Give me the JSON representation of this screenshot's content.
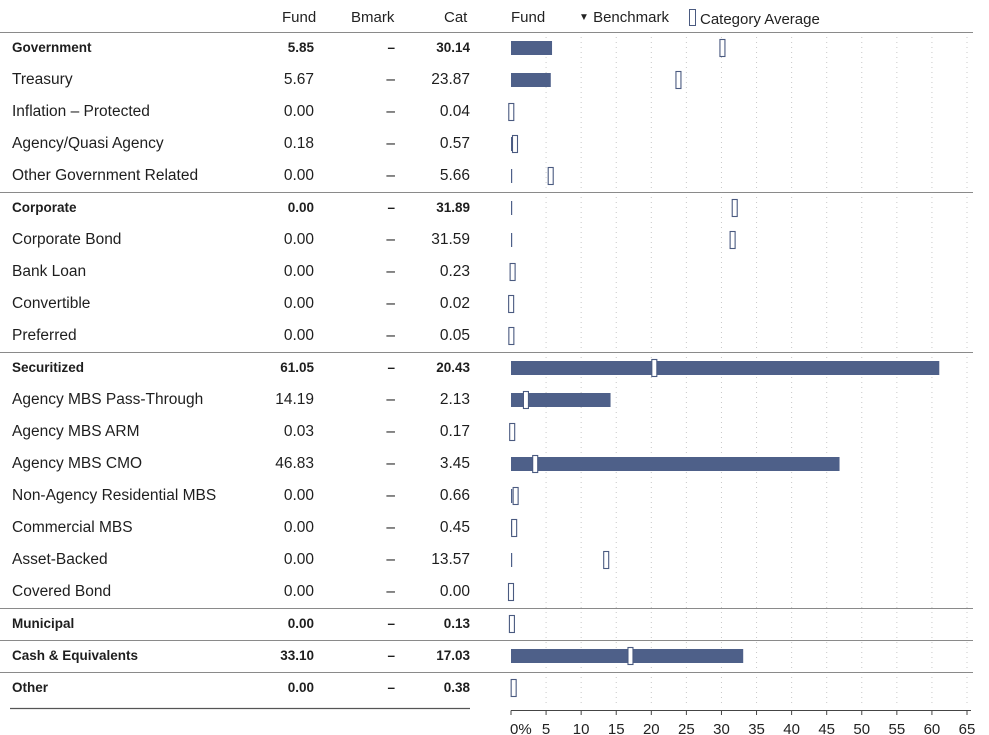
{
  "header": {
    "fund": "Fund",
    "bmark": "Bmark",
    "cat": "Cat",
    "legend_fund": "Fund",
    "legend_benchmark": "Benchmark",
    "legend_category": "Category Average"
  },
  "colors": {
    "fund_bar": "#4e6089",
    "cat_marker_stroke": "#4a5a80",
    "major_line": "#8a8a8a",
    "grid_dots": "#c8c8c8"
  },
  "chart_data": {
    "type": "bar",
    "orientation": "horizontal",
    "xlim": [
      0,
      65
    ],
    "x_ticks": [
      "0%",
      "5",
      "10",
      "15",
      "20",
      "25",
      "30",
      "35",
      "40",
      "45",
      "50",
      "55",
      "60",
      "65"
    ],
    "rows": [
      {
        "name": "Government",
        "major": true,
        "fund": 5.85,
        "bmark": "–",
        "cat": 30.14,
        "fund_label": "5.85",
        "cat_label": "30.14"
      },
      {
        "name": "Treasury",
        "major": false,
        "fund": 5.67,
        "bmark": "–",
        "cat": 23.87,
        "fund_label": "5.67",
        "cat_label": "23.87"
      },
      {
        "name": "Inflation – Protected",
        "major": false,
        "fund": 0.0,
        "bmark": "–",
        "cat": 0.04,
        "fund_label": "0.00",
        "cat_label": "0.04"
      },
      {
        "name": "Agency/Quasi Agency",
        "major": false,
        "fund": 0.18,
        "bmark": "–",
        "cat": 0.57,
        "fund_label": "0.18",
        "cat_label": "0.57"
      },
      {
        "name": "Other Government Related",
        "major": false,
        "fund": 0.0,
        "bmark": "–",
        "cat": 5.66,
        "fund_label": "0.00",
        "cat_label": "5.66"
      },
      {
        "name": "Corporate",
        "major": true,
        "fund": 0.0,
        "bmark": "–",
        "cat": 31.89,
        "fund_label": "0.00",
        "cat_label": "31.89"
      },
      {
        "name": "Corporate Bond",
        "major": false,
        "fund": 0.0,
        "bmark": "–",
        "cat": 31.59,
        "fund_label": "0.00",
        "cat_label": "31.59"
      },
      {
        "name": "Bank Loan",
        "major": false,
        "fund": 0.0,
        "bmark": "–",
        "cat": 0.23,
        "fund_label": "0.00",
        "cat_label": "0.23"
      },
      {
        "name": "Convertible",
        "major": false,
        "fund": 0.0,
        "bmark": "–",
        "cat": 0.02,
        "fund_label": "0.00",
        "cat_label": "0.02"
      },
      {
        "name": "Preferred",
        "major": false,
        "fund": 0.0,
        "bmark": "–",
        "cat": 0.05,
        "fund_label": "0.00",
        "cat_label": "0.05"
      },
      {
        "name": "Securitized",
        "major": true,
        "fund": 61.05,
        "bmark": "–",
        "cat": 20.43,
        "fund_label": "61.05",
        "cat_label": "20.43"
      },
      {
        "name": "Agency MBS Pass-Through",
        "major": false,
        "fund": 14.19,
        "bmark": "–",
        "cat": 2.13,
        "fund_label": "14.19",
        "cat_label": "2.13"
      },
      {
        "name": "Agency MBS ARM",
        "major": false,
        "fund": 0.03,
        "bmark": "–",
        "cat": 0.17,
        "fund_label": "0.03",
        "cat_label": "0.17"
      },
      {
        "name": "Agency MBS CMO",
        "major": false,
        "fund": 46.83,
        "bmark": "–",
        "cat": 3.45,
        "fund_label": "46.83",
        "cat_label": "3.45"
      },
      {
        "name": "Non-Agency Residential MBS",
        "major": false,
        "fund": 0.0,
        "bmark": "–",
        "cat": 0.66,
        "fund_label": "0.00",
        "cat_label": "0.66"
      },
      {
        "name": "Commercial MBS",
        "major": false,
        "fund": 0.0,
        "bmark": "–",
        "cat": 0.45,
        "fund_label": "0.00",
        "cat_label": "0.45"
      },
      {
        "name": "Asset-Backed",
        "major": false,
        "fund": 0.0,
        "bmark": "–",
        "cat": 13.57,
        "fund_label": "0.00",
        "cat_label": "13.57"
      },
      {
        "name": "Covered Bond",
        "major": false,
        "fund": 0.0,
        "bmark": "–",
        "cat": 0.0,
        "fund_label": "0.00",
        "cat_label": "0.00"
      },
      {
        "name": "Municipal",
        "major": true,
        "fund": 0.0,
        "bmark": "–",
        "cat": 0.13,
        "fund_label": "0.00",
        "cat_label": "0.13"
      },
      {
        "name": "Cash & Equivalents",
        "major": true,
        "fund": 33.1,
        "bmark": "–",
        "cat": 17.03,
        "fund_label": "33.10",
        "cat_label": "17.03"
      },
      {
        "name": "Other",
        "major": true,
        "fund": 0.0,
        "bmark": "–",
        "cat": 0.38,
        "fund_label": "0.00",
        "cat_label": "0.38"
      }
    ]
  }
}
